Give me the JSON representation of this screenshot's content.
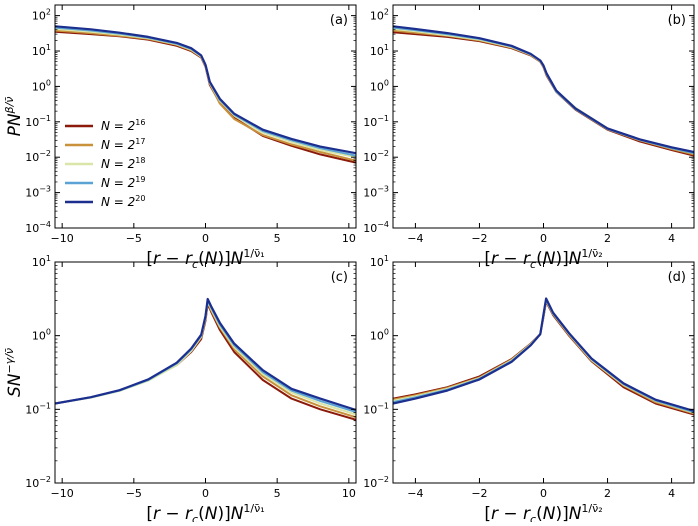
{
  "colors": {
    "N16": "#8b1a0a",
    "N17": "#c8913a",
    "N18": "#d9e6a8",
    "N19": "#5ba3d4",
    "N20": "#1c2f8f"
  },
  "legend": {
    "entries": [
      {
        "base": "N = 2",
        "exp": "16",
        "color": "#8b1a0a"
      },
      {
        "base": "N = 2",
        "exp": "17",
        "color": "#c8913a"
      },
      {
        "base": "N = 2",
        "exp": "18",
        "color": "#d9e6a8"
      },
      {
        "base": "N = 2",
        "exp": "19",
        "color": "#5ba3d4"
      },
      {
        "base": "N = 2",
        "exp": "20",
        "color": "#1c2f8f"
      }
    ]
  },
  "chart_data": [
    {
      "type": "line",
      "panel": "(a)",
      "ylabel": "PN^{β/ν̄}",
      "xlabel": "[r − r_c(N)]N^{1/ν̄₁}",
      "xlim": [
        -10.5,
        10.5
      ],
      "ylim_log10": [
        -4,
        2.3
      ],
      "yscale": "log",
      "xticks": [
        -10,
        -5,
        0,
        5,
        10
      ],
      "yticks": [
        "10⁻³",
        "10⁻²",
        "10⁻¹",
        "10⁰",
        "10¹",
        "10²"
      ],
      "series": [
        {
          "name": "N = 2^16",
          "x": [
            -10.5,
            -8,
            -6,
            -4,
            -2,
            -1,
            -0.3,
            0,
            0.3,
            1,
            2,
            4,
            6,
            8,
            10.5
          ],
          "y": [
            35,
            30,
            26,
            21,
            14,
            10,
            6.5,
            3.6,
            1.1,
            0.35,
            0.13,
            0.04,
            0.021,
            0.012,
            0.007
          ]
        },
        {
          "name": "N = 2^17",
          "x": [
            -10.5,
            -8,
            -6,
            -4,
            -2,
            -1,
            -0.3,
            0,
            0.3,
            1,
            2,
            4,
            6,
            8,
            10.5
          ],
          "y": [
            38,
            32,
            27,
            22,
            15,
            10.5,
            6.8,
            3.8,
            1.2,
            0.33,
            0.12,
            0.042,
            0.023,
            0.014,
            0.008
          ]
        },
        {
          "name": "N = 2^18",
          "x": [
            -10.5,
            -8,
            -6,
            -4,
            -2,
            -1,
            -0.3,
            0,
            0.3,
            1,
            2,
            4,
            6,
            8,
            10.5
          ],
          "y": [
            42,
            35,
            29,
            23,
            15.5,
            11,
            7,
            3.9,
            1.25,
            0.4,
            0.15,
            0.05,
            0.027,
            0.016,
            0.01
          ]
        },
        {
          "name": "N = 2^19",
          "x": [
            -10.5,
            -8,
            -6,
            -4,
            -2,
            -1,
            -0.3,
            0,
            0.3,
            1,
            2,
            4,
            6,
            8,
            10.5
          ],
          "y": [
            46,
            38,
            31,
            24,
            16,
            11.5,
            7.3,
            4.0,
            1.3,
            0.42,
            0.16,
            0.055,
            0.03,
            0.018,
            0.011
          ]
        },
        {
          "name": "N = 2^20",
          "x": [
            -10.5,
            -8,
            -6,
            -4,
            -2,
            -1,
            -0.3,
            0,
            0.3,
            1,
            2,
            4,
            6,
            8,
            10.5
          ],
          "y": [
            50,
            41,
            33,
            25,
            17,
            12,
            7.5,
            4.1,
            1.35,
            0.45,
            0.17,
            0.06,
            0.033,
            0.02,
            0.013
          ]
        }
      ]
    },
    {
      "type": "line",
      "panel": "(b)",
      "xlabel": "[r − r_c(N)]N^{1/ν̄₂}",
      "xlim": [
        -4.7,
        4.7
      ],
      "ylim_log10": [
        -4,
        2.3
      ],
      "yscale": "log",
      "xticks": [
        -4,
        -2,
        0,
        2,
        4
      ],
      "yticks": [
        "10⁻³",
        "10⁻²",
        "10⁻¹",
        "10⁰",
        "10¹",
        "10²"
      ],
      "series": [
        {
          "name": "N = 2^16",
          "x": [
            -4.7,
            -4,
            -3,
            -2,
            -1,
            -0.4,
            -0.1,
            0,
            0.1,
            0.4,
            1,
            2,
            3,
            4,
            4.7
          ],
          "y": [
            34,
            30,
            25,
            19,
            12,
            7.5,
            5,
            3.5,
            2,
            0.7,
            0.22,
            0.06,
            0.028,
            0.016,
            0.011
          ]
        },
        {
          "name": "N = 2^17",
          "x": [
            -4.7,
            -4,
            -3,
            -2,
            -1,
            -0.4,
            -0.1,
            0,
            0.1,
            0.4,
            1,
            2,
            3,
            4,
            4.7
          ],
          "y": [
            38,
            33,
            27,
            20,
            12.5,
            7.7,
            5.1,
            3.6,
            2.1,
            0.72,
            0.23,
            0.062,
            0.03,
            0.017,
            0.012
          ]
        },
        {
          "name": "N = 2^18",
          "x": [
            -4.7,
            -4,
            -3,
            -2,
            -1,
            -0.4,
            -0.1,
            0,
            0.1,
            0.4,
            1,
            2,
            3,
            4,
            4.7
          ],
          "y": [
            42,
            36,
            28,
            21,
            13,
            7.9,
            5.2,
            3.7,
            2.2,
            0.75,
            0.25,
            0.065,
            0.031,
            0.018,
            0.013
          ]
        },
        {
          "name": "N = 2^19",
          "x": [
            -4.7,
            -4,
            -3,
            -2,
            -1,
            -0.4,
            -0.1,
            0,
            0.1,
            0.4,
            1,
            2,
            3,
            4,
            4.7
          ],
          "y": [
            46,
            39,
            30,
            22,
            13.5,
            8.1,
            5.3,
            3.8,
            2.2,
            0.72,
            0.23,
            0.063,
            0.031,
            0.018,
            0.013
          ]
        },
        {
          "name": "N = 2^20",
          "x": [
            -4.7,
            -4,
            -3,
            -2,
            -1,
            -0.4,
            -0.1,
            0,
            0.1,
            0.4,
            1,
            2,
            3,
            4,
            4.7
          ],
          "y": [
            50,
            42,
            32,
            23,
            14,
            8.3,
            5.4,
            3.9,
            2.3,
            0.76,
            0.24,
            0.065,
            0.032,
            0.019,
            0.014
          ]
        }
      ]
    },
    {
      "type": "line",
      "panel": "(c)",
      "ylabel": "SN^{−γ/ν̄}",
      "xlabel": "[r − r_c(N)]N^{1/ν̄₁}",
      "xlim": [
        -10.5,
        10.5
      ],
      "ylim_log10": [
        -2,
        1
      ],
      "yscale": "log",
      "xticks": [
        -10,
        -5,
        0,
        5,
        10
      ],
      "yticks": [
        "10⁻²",
        "10⁻¹",
        "10⁰",
        "10¹"
      ],
      "series": [
        {
          "name": "N = 2^16",
          "x": [
            -10.5,
            -8,
            -6,
            -4,
            -2,
            -1,
            -0.3,
            0,
            0.15,
            0.4,
            1,
            2,
            4,
            6,
            8,
            10.5
          ],
          "y": [
            0.12,
            0.145,
            0.18,
            0.25,
            0.4,
            0.6,
            0.9,
            1.6,
            2.7,
            2.1,
            1.2,
            0.6,
            0.25,
            0.14,
            0.1,
            0.072
          ]
        },
        {
          "name": "N = 2^17",
          "x": [
            -10.5,
            -8,
            -6,
            -4,
            -2,
            -1,
            -0.3,
            0,
            0.15,
            0.4,
            1,
            2,
            4,
            6,
            8,
            10.5
          ],
          "y": [
            0.12,
            0.145,
            0.18,
            0.25,
            0.41,
            0.62,
            0.95,
            1.7,
            2.85,
            2.2,
            1.3,
            0.66,
            0.28,
            0.155,
            0.11,
            0.078
          ]
        },
        {
          "name": "N = 2^18",
          "x": [
            -10.5,
            -8,
            -6,
            -4,
            -2,
            -1,
            -0.3,
            0,
            0.15,
            0.4,
            1,
            2,
            4,
            6,
            8,
            10.5
          ],
          "y": [
            0.12,
            0.144,
            0.178,
            0.245,
            0.4,
            0.62,
            0.97,
            1.75,
            2.95,
            2.3,
            1.35,
            0.7,
            0.3,
            0.17,
            0.12,
            0.085
          ]
        },
        {
          "name": "N = 2^19",
          "x": [
            -10.5,
            -8,
            -6,
            -4,
            -2,
            -1,
            -0.3,
            0,
            0.15,
            0.4,
            1,
            2,
            4,
            6,
            8,
            10.5
          ],
          "y": [
            0.12,
            0.145,
            0.18,
            0.25,
            0.42,
            0.65,
            1.0,
            1.8,
            3.05,
            2.4,
            1.42,
            0.74,
            0.32,
            0.18,
            0.13,
            0.092
          ]
        },
        {
          "name": "N = 2^20",
          "x": [
            -10.5,
            -8,
            -6,
            -4,
            -2,
            -1,
            -0.3,
            0,
            0.15,
            0.4,
            1,
            2,
            4,
            6,
            8,
            10.5
          ],
          "y": [
            0.12,
            0.146,
            0.182,
            0.255,
            0.43,
            0.67,
            1.03,
            1.85,
            3.15,
            2.5,
            1.5,
            0.78,
            0.34,
            0.19,
            0.14,
            0.098
          ]
        }
      ]
    },
    {
      "type": "line",
      "panel": "(d)",
      "xlabel": "[r − r_c(N)]N^{1/ν̄₂}",
      "xlim": [
        -4.7,
        4.7
      ],
      "ylim_log10": [
        -2,
        1
      ],
      "yscale": "log",
      "xticks": [
        -4,
        -2,
        0,
        2,
        4
      ],
      "yticks": [
        "10⁻²",
        "10⁻¹",
        "10⁰",
        "10¹"
      ],
      "series": [
        {
          "name": "N = 2^16",
          "x": [
            -4.7,
            -4,
            -3,
            -2,
            -1,
            -0.4,
            -0.1,
            0,
            0.08,
            0.3,
            0.8,
            1.5,
            2.5,
            3.5,
            4.7
          ],
          "y": [
            0.14,
            0.16,
            0.2,
            0.28,
            0.48,
            0.78,
            1.05,
            1.8,
            2.9,
            1.9,
            1.0,
            0.45,
            0.2,
            0.12,
            0.085
          ]
        },
        {
          "name": "N = 2^17",
          "x": [
            -4.7,
            -4,
            -3,
            -2,
            -1,
            -0.4,
            -0.1,
            0,
            0.08,
            0.3,
            0.8,
            1.5,
            2.5,
            3.5,
            4.7
          ],
          "y": [
            0.135,
            0.155,
            0.195,
            0.27,
            0.47,
            0.77,
            1.05,
            1.85,
            3.0,
            1.95,
            1.02,
            0.46,
            0.21,
            0.125,
            0.088
          ]
        },
        {
          "name": "N = 2^18",
          "x": [
            -4.7,
            -4,
            -3,
            -2,
            -1,
            -0.4,
            -0.1,
            0,
            0.08,
            0.3,
            0.8,
            1.5,
            2.5,
            3.5,
            4.7
          ],
          "y": [
            0.13,
            0.15,
            0.19,
            0.265,
            0.46,
            0.76,
            1.05,
            1.88,
            3.05,
            2.0,
            1.05,
            0.47,
            0.215,
            0.13,
            0.09
          ]
        },
        {
          "name": "N = 2^19",
          "x": [
            -4.7,
            -4,
            -3,
            -2,
            -1,
            -0.4,
            -0.1,
            0,
            0.08,
            0.3,
            0.8,
            1.5,
            2.5,
            3.5,
            4.7
          ],
          "y": [
            0.125,
            0.145,
            0.185,
            0.26,
            0.45,
            0.75,
            1.05,
            1.9,
            3.1,
            2.0,
            1.06,
            0.48,
            0.22,
            0.132,
            0.092
          ]
        },
        {
          "name": "N = 2^20",
          "x": [
            -4.7,
            -4,
            -3,
            -2,
            -1,
            -0.4,
            -0.1,
            0,
            0.08,
            0.3,
            0.8,
            1.5,
            2.5,
            3.5,
            4.7
          ],
          "y": [
            0.12,
            0.14,
            0.18,
            0.255,
            0.44,
            0.74,
            1.05,
            1.95,
            3.2,
            2.05,
            1.08,
            0.49,
            0.225,
            0.135,
            0.095
          ]
        }
      ]
    }
  ]
}
